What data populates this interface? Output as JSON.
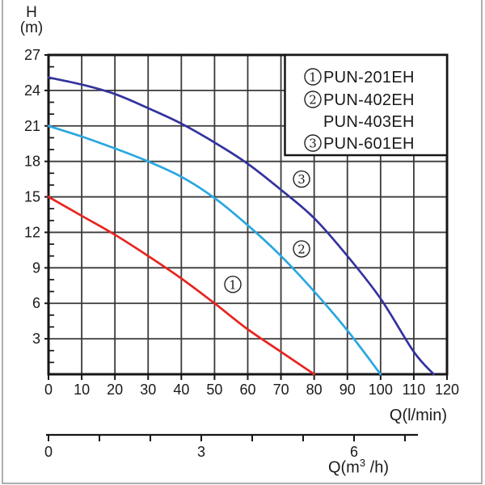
{
  "labels": {
    "y_axis_line1": "H",
    "y_axis_line2": "(m)",
    "x_axis_primary": "Q(l/min)",
    "x_axis_secondary_prefix": "Q(m",
    "x_axis_secondary_sup": "3",
    "x_axis_secondary_suffix": " /h)"
  },
  "chart_data": {
    "type": "line",
    "title": "",
    "xlabel": "Q(l/min)",
    "xlabel_secondary": "Q(m3/h)",
    "ylabel": "H (m)",
    "xlim": [
      0,
      120
    ],
    "ylim": [
      0,
      27
    ],
    "grid": true,
    "x_ticks": [
      0,
      10,
      20,
      30,
      40,
      50,
      60,
      70,
      80,
      90,
      100,
      110,
      120
    ],
    "y_grid_step": 3,
    "y_tick_labels": [
      27,
      24,
      21,
      18,
      15,
      12,
      9,
      6,
      3
    ],
    "y_minor_tick_step": 1,
    "secondary_x_ticks": [
      0,
      1,
      2,
      3,
      4,
      5,
      6,
      7
    ],
    "secondary_x_tick_labels": [
      {
        "v": 0,
        "t": "0"
      },
      {
        "v": 3,
        "t": "3"
      },
      {
        "v": 6,
        "t": "6"
      }
    ],
    "legend_position": "top-right",
    "legend_rows": [
      {
        "marker": "1",
        "label": "PUN-201EH"
      },
      {
        "marker": "2",
        "label": "PUN-402EH"
      },
      {
        "marker": "",
        "label": "PUN-403EH"
      },
      {
        "marker": "3",
        "label": "PUN-601EH"
      }
    ],
    "series": [
      {
        "marker": "1",
        "name": "PUN-201EH",
        "color": "#e8241f",
        "points": [
          [
            0,
            15
          ],
          [
            10,
            13.4
          ],
          [
            20,
            11.8
          ],
          [
            30,
            10.0
          ],
          [
            40,
            8.1
          ],
          [
            50,
            6.0
          ],
          [
            60,
            3.8
          ],
          [
            70,
            1.9
          ],
          [
            80,
            0
          ]
        ]
      },
      {
        "marker": "2",
        "name": "PUN-402EH / PUN-403EH",
        "color": "#2aa7e0",
        "points": [
          [
            0,
            21
          ],
          [
            10,
            20.1
          ],
          [
            20,
            19.1
          ],
          [
            30,
            18.0
          ],
          [
            40,
            16.7
          ],
          [
            50,
            14.9
          ],
          [
            60,
            12.6
          ],
          [
            70,
            10.0
          ],
          [
            80,
            7.0
          ],
          [
            90,
            3.7
          ],
          [
            100,
            0
          ]
        ]
      },
      {
        "marker": "3",
        "name": "PUN-601EH",
        "color": "#33339e",
        "points": [
          [
            0,
            25.1
          ],
          [
            10,
            24.5
          ],
          [
            20,
            23.7
          ],
          [
            30,
            22.5
          ],
          [
            40,
            21.2
          ],
          [
            50,
            19.6
          ],
          [
            60,
            17.8
          ],
          [
            70,
            15.6
          ],
          [
            80,
            13.2
          ],
          [
            90,
            10.0
          ],
          [
            100,
            6.4
          ],
          [
            110,
            1.9
          ],
          [
            116,
            0
          ]
        ]
      }
    ],
    "curve_labels": [
      {
        "marker": "1",
        "q": 55.5,
        "h": 7.6
      },
      {
        "marker": "2",
        "q": 76.2,
        "h": 10.6
      },
      {
        "marker": "3",
        "q": 76.2,
        "h": 16.5
      }
    ]
  }
}
